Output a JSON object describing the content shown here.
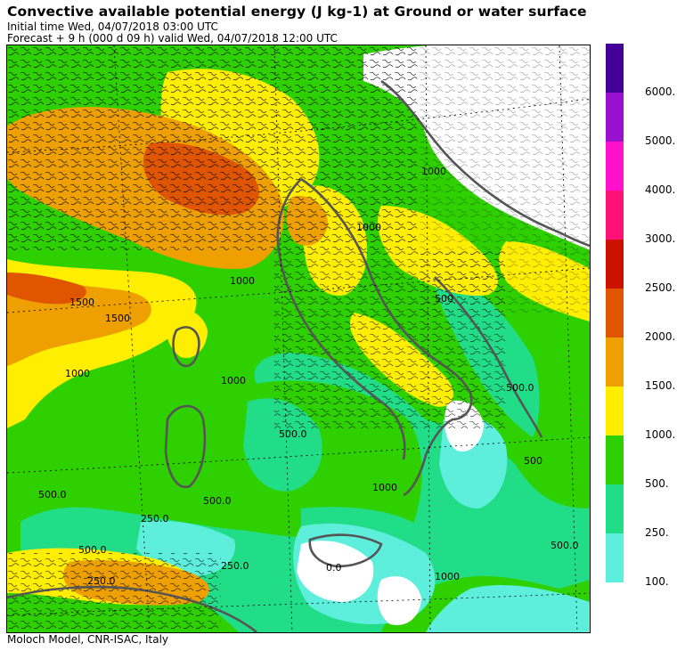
{
  "header": {
    "title": "Convective available potential energy (J kg-1) at Ground or water surface",
    "initial_time": "Initial time  Wed, 04/07/2018  03:00 UTC",
    "forecast": "Forecast  +   9 h  (000 d 09 h)  valid Wed, 04/07/2018 12:00 UTC"
  },
  "footer": {
    "credit": "Moloch Model, CNR-ISAC, Italy"
  },
  "legend": {
    "unit": "J kg-1",
    "levels": [
      {
        "label": "100.",
        "value": 100,
        "color": "#5eeedc"
      },
      {
        "label": "250.",
        "value": 250,
        "color": "#22dd88"
      },
      {
        "label": "500.",
        "value": 500,
        "color": "#2fd000"
      },
      {
        "label": "1000.",
        "value": 1000,
        "color": "#ffee00"
      },
      {
        "label": "1500.",
        "value": 1500,
        "color": "#eea000"
      },
      {
        "label": "2000.",
        "value": 2000,
        "color": "#e05500"
      },
      {
        "label": "2500.",
        "value": 2500,
        "color": "#cc1100"
      },
      {
        "label": "3000.",
        "value": 3000,
        "color": "#ff1177"
      },
      {
        "label": "4000.",
        "value": 4000,
        "color": "#ff11cc"
      },
      {
        "label": "5000.",
        "value": 5000,
        "color": "#9911cc"
      },
      {
        "label": "6000.",
        "value": 6000,
        "color": "#440099"
      }
    ],
    "extension_color": "#330099"
  },
  "map": {
    "no_data_color": "#ffffff",
    "coastline_color": "#555555",
    "contour_color": "#000000",
    "contour_labels": [
      "1500",
      "1500",
      "1000",
      "1000",
      "1000",
      "1000",
      "1000",
      "500.0",
      "500.0",
      "500.0",
      "500.0",
      "500",
      "500",
      "500.0",
      "250.0",
      "250.0",
      "250.0",
      "1000",
      "0.0",
      "500.0",
      "1000"
    ]
  }
}
